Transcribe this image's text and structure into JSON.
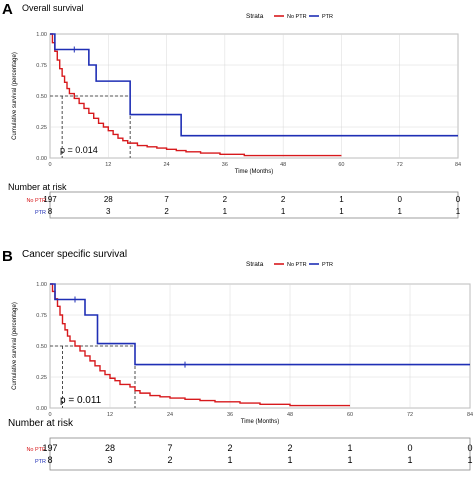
{
  "colors": {
    "no_ptr": "#d7191c",
    "ptr": "#1f2fb5",
    "panel_border": "#888888",
    "grid": "#d8d8d8"
  },
  "chart_data": [
    {
      "type": "line",
      "step": true,
      "panel_letter": "A",
      "title": "Overall survival",
      "legend_title": "Strata",
      "legend_position": "top-right",
      "ylabel": "Cumulative survival (percentage)",
      "xlabel": "Time (Months)",
      "xlim": [
        0,
        84
      ],
      "ylim": [
        0,
        1
      ],
      "x_ticks": [
        0,
        12,
        24,
        36,
        48,
        60,
        72,
        84
      ],
      "y_ticks": [
        "0.00",
        "0.25",
        "0.50",
        "0.75",
        "1.00"
      ],
      "median_lines": [
        2.5,
        16.5
      ],
      "p_value": "p = 0.014",
      "series": [
        {
          "name": "No PTR",
          "color_key": "no_ptr",
          "points": [
            [
              0,
              1
            ],
            [
              0.5,
              0.93
            ],
            [
              1,
              0.86
            ],
            [
              1.5,
              0.79
            ],
            [
              2,
              0.72
            ],
            [
              2.5,
              0.66
            ],
            [
              3,
              0.61
            ],
            [
              3.5,
              0.56
            ],
            [
              4,
              0.52
            ],
            [
              5,
              0.48
            ],
            [
              6,
              0.44
            ],
            [
              7,
              0.4
            ],
            [
              8,
              0.36
            ],
            [
              9,
              0.32
            ],
            [
              10,
              0.28
            ],
            [
              11,
              0.25
            ],
            [
              12,
              0.22
            ],
            [
              13,
              0.19
            ],
            [
              14,
              0.16
            ],
            [
              15,
              0.14
            ],
            [
              16,
              0.12
            ],
            [
              18,
              0.1
            ],
            [
              20,
              0.09
            ],
            [
              22,
              0.08
            ],
            [
              24,
              0.07
            ],
            [
              26,
              0.06
            ],
            [
              28,
              0.05
            ],
            [
              31,
              0.04
            ],
            [
              35,
              0.03
            ],
            [
              40,
              0.02
            ],
            [
              60,
              0.02
            ]
          ]
        },
        {
          "name": "PTR",
          "color_key": "ptr",
          "points": [
            [
              0,
              1
            ],
            [
              1,
              0.875
            ],
            [
              8,
              0.75
            ],
            [
              9.5,
              0.62
            ],
            [
              16.5,
              0.35
            ],
            [
              27,
              0.18
            ],
            [
              84,
              0.18
            ]
          ],
          "censor_marks": [
            [
              5,
              0.875
            ]
          ]
        }
      ]
    },
    {
      "type": "line",
      "step": true,
      "panel_letter": "B",
      "title": "Cancer specific survival",
      "legend_title": "Strata",
      "legend_position": "top-right",
      "ylabel": "Cumulative survival (percentage)",
      "xlabel": "Time (Months)",
      "xlim": [
        0,
        84
      ],
      "ylim": [
        0,
        1
      ],
      "x_ticks": [
        0,
        12,
        24,
        36,
        48,
        60,
        72,
        84
      ],
      "y_ticks": [
        "0.00",
        "0.25",
        "0.50",
        "0.75",
        "1.00"
      ],
      "median_lines": [
        2.5,
        17
      ],
      "p_value": "p = 0.011",
      "series": [
        {
          "name": "No PTR",
          "color_key": "no_ptr",
          "points": [
            [
              0,
              1
            ],
            [
              0.5,
              0.94
            ],
            [
              1,
              0.88
            ],
            [
              1.5,
              0.82
            ],
            [
              2,
              0.75
            ],
            [
              2.5,
              0.68
            ],
            [
              3,
              0.63
            ],
            [
              3.5,
              0.58
            ],
            [
              4,
              0.54
            ],
            [
              5,
              0.5
            ],
            [
              6,
              0.46
            ],
            [
              7,
              0.42
            ],
            [
              8,
              0.38
            ],
            [
              9,
              0.34
            ],
            [
              10,
              0.3
            ],
            [
              11,
              0.27
            ],
            [
              12,
              0.24
            ],
            [
              13,
              0.22
            ],
            [
              14,
              0.19
            ],
            [
              16,
              0.17
            ],
            [
              17,
              0.14
            ],
            [
              18,
              0.12
            ],
            [
              20,
              0.1
            ],
            [
              22,
              0.09
            ],
            [
              24,
              0.08
            ],
            [
              27,
              0.07
            ],
            [
              30,
              0.06
            ],
            [
              33,
              0.05
            ],
            [
              38,
              0.04
            ],
            [
              42,
              0.03
            ],
            [
              48,
              0.02
            ],
            [
              60,
              0.02
            ]
          ]
        },
        {
          "name": "PTR",
          "color_key": "ptr",
          "points": [
            [
              0,
              1
            ],
            [
              1,
              0.875
            ],
            [
              7,
              0.75
            ],
            [
              9.5,
              0.52
            ],
            [
              17,
              0.35
            ],
            [
              84,
              0.35
            ]
          ],
          "censor_marks": [
            [
              5,
              0.875
            ],
            [
              27,
              0.35
            ]
          ]
        }
      ]
    }
  ],
  "risk_tables": [
    {
      "title": "Number at risk",
      "rows": [
        {
          "label": "No PTR",
          "color_key": "no_ptr",
          "values": [
            "197",
            "28",
            "7",
            "2",
            "2",
            "1",
            "0",
            "0"
          ]
        },
        {
          "label": "PTR",
          "color_key": "ptr",
          "values": [
            "8",
            "3",
            "2",
            "1",
            "1",
            "1",
            "1",
            "1"
          ]
        }
      ]
    },
    {
      "title": "Number at risk",
      "rows": [
        {
          "label": "No PTR",
          "color_key": "no_ptr",
          "values": [
            "197",
            "28",
            "7",
            "2",
            "2",
            "1",
            "0",
            "0"
          ]
        },
        {
          "label": "PTR",
          "color_key": "ptr",
          "values": [
            "8",
            "3",
            "2",
            "1",
            "1",
            "1",
            "1",
            "1"
          ]
        }
      ]
    }
  ]
}
